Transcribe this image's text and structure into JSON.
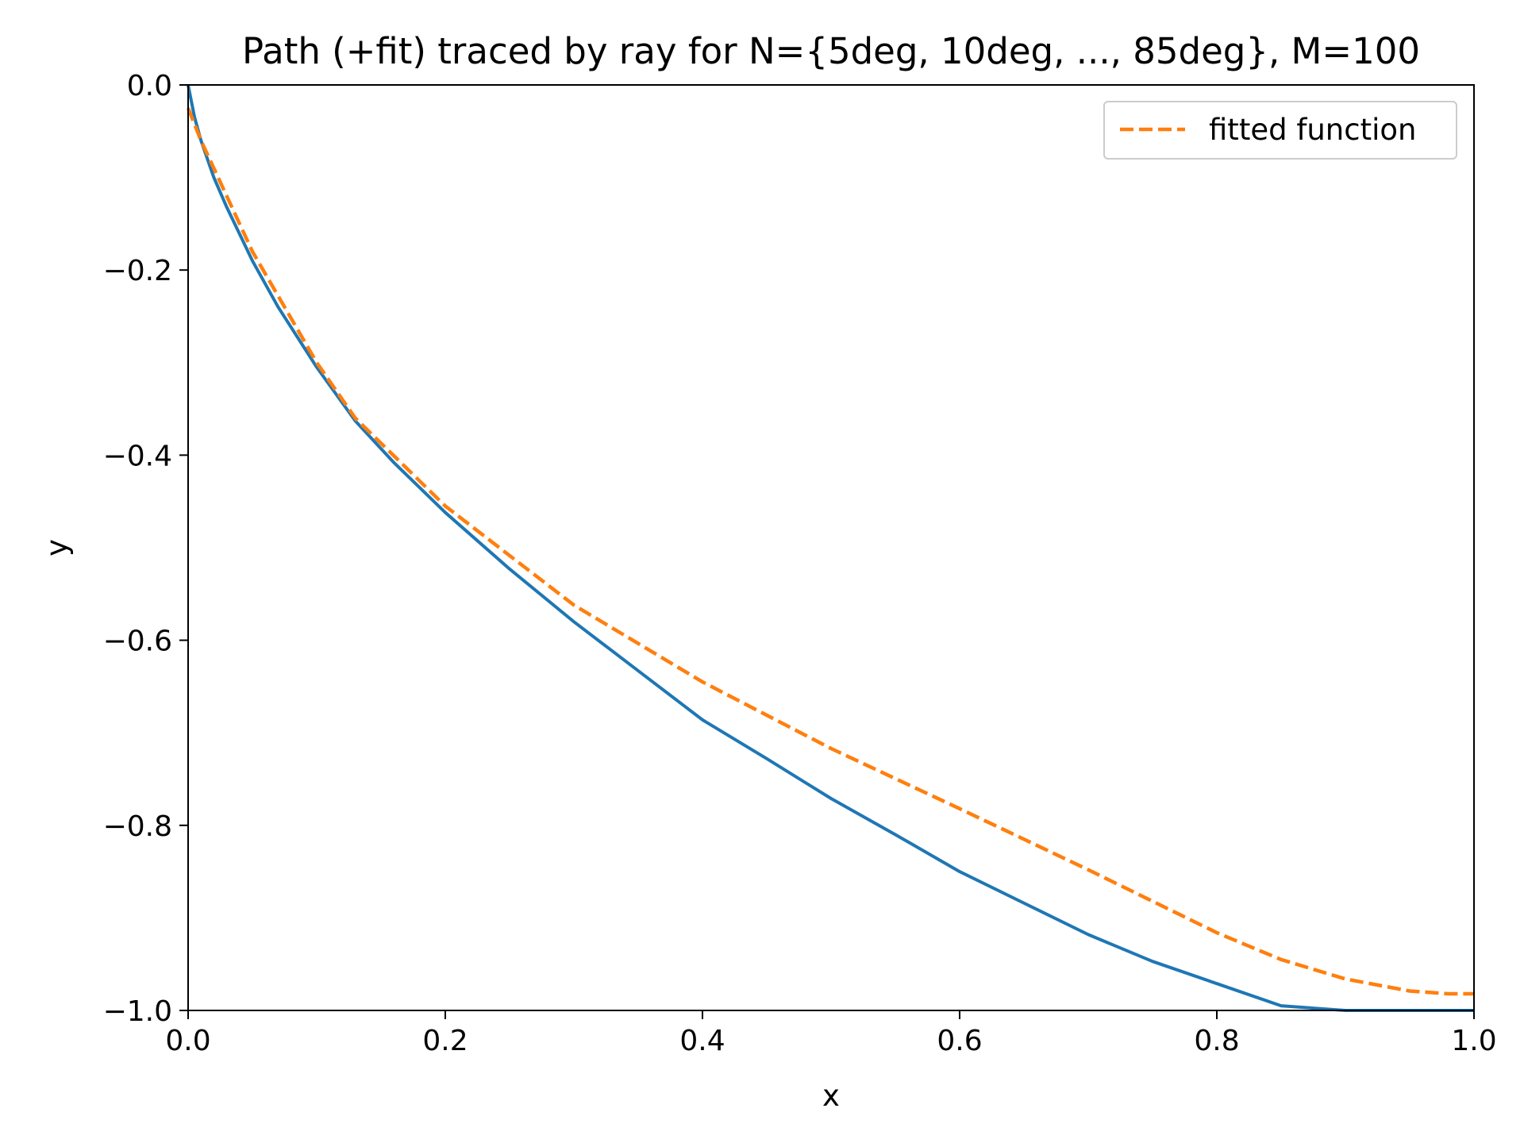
{
  "chart_data": {
    "type": "line",
    "title": "Path (+fit) traced by ray for N={5deg, 10deg, ..., 85deg}, M=100",
    "xlabel": "x",
    "ylabel": "y",
    "xlim": [
      0.0,
      1.0
    ],
    "ylim": [
      -1.0,
      0.0
    ],
    "xticks": [
      "0.0",
      "0.2",
      "0.4",
      "0.6",
      "0.8",
      "1.0"
    ],
    "yticks": [
      "0.0",
      "−0.2",
      "−0.4",
      "−0.6",
      "−0.8",
      "−1.0"
    ],
    "xtick_values": [
      0.0,
      0.2,
      0.4,
      0.6,
      0.8,
      1.0
    ],
    "ytick_values": [
      0.0,
      -0.2,
      -0.4,
      -0.6,
      -0.8,
      -1.0
    ],
    "grid": false,
    "legend_position": "top-right",
    "series": [
      {
        "key": "ray-path",
        "name": "",
        "style": "solid",
        "color": "#1f77b4",
        "x": [
          0.0,
          0.005,
          0.01,
          0.02,
          0.03,
          0.05,
          0.07,
          0.1,
          0.13,
          0.16,
          0.2,
          0.25,
          0.3,
          0.35,
          0.4,
          0.45,
          0.5,
          0.55,
          0.6,
          0.65,
          0.7,
          0.75,
          0.8,
          0.85,
          0.9,
          0.95,
          1.0
        ],
        "y": [
          0.0,
          -0.035,
          -0.06,
          -0.1,
          -0.132,
          -0.19,
          -0.24,
          -0.305,
          -0.363,
          -0.408,
          -0.462,
          -0.523,
          -0.58,
          -0.633,
          -0.686,
          -0.728,
          -0.771,
          -0.81,
          -0.85,
          -0.884,
          -0.918,
          -0.947,
          -0.971,
          -0.995,
          -1.02,
          -1.04,
          -1.0
        ]
      },
      {
        "key": "fitted-function",
        "name": "fitted function",
        "style": "dashed",
        "color": "#ff7f0e",
        "x": [
          0.0,
          0.01,
          0.02,
          0.05,
          0.1,
          0.13,
          0.2,
          0.3,
          0.4,
          0.5,
          0.6,
          0.7,
          0.8,
          0.85,
          0.9,
          0.95,
          0.98,
          1.0
        ],
        "y": [
          -0.025,
          -0.06,
          -0.09,
          -0.18,
          -0.3,
          -0.36,
          -0.455,
          -0.562,
          -0.645,
          -0.717,
          -0.782,
          -0.848,
          -0.916,
          -0.945,
          -0.966,
          -0.979,
          -0.982,
          -0.982
        ]
      }
    ]
  },
  "legend": {
    "entries": [
      "fitted function"
    ]
  }
}
